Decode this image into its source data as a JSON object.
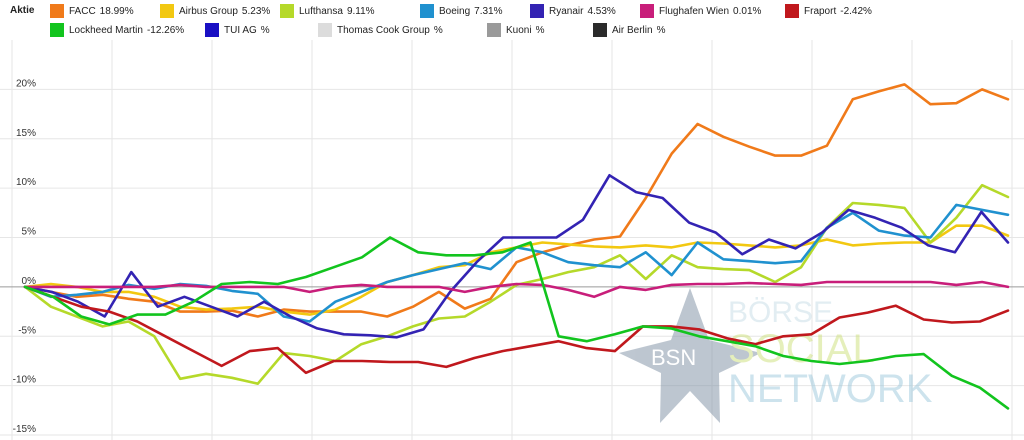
{
  "legend": {
    "title": "Aktie"
  },
  "watermark": {
    "star_text": "BSN",
    "line1": "BÖRSE",
    "line2": "SOCIAL",
    "line3": "NETWORK"
  },
  "chart_data": {
    "type": "line",
    "ylim": [
      -15.5,
      25
    ],
    "yticks": [
      20,
      15,
      10,
      5,
      0,
      -5,
      -10,
      -15
    ],
    "ytick_labels": [
      "20%",
      "15%",
      "10%",
      "5%",
      "0%",
      "-5%",
      "-10%",
      "-15%"
    ],
    "grid": true,
    "legend_position": "top",
    "series": [
      {
        "name": "FACC",
        "value_label": "18.99%",
        "color": "#f07a1a",
        "values": [
          0,
          -0.5,
          -1,
          -0.8,
          -1.2,
          -1.5,
          -2.5,
          -2.5,
          -2.4,
          -3,
          -2.3,
          -2.5,
          -2.5,
          -2.5,
          -3,
          -2,
          -0.5,
          -2.2,
          -1.2,
          2.5,
          3.5,
          4.2,
          4.8,
          5.1,
          9,
          13.5,
          16.5,
          15.2,
          14.2,
          13.3,
          13.3,
          14.3,
          19,
          19.8,
          20.5,
          18.5,
          18.6,
          20,
          19
        ]
      },
      {
        "name": "Airbus Group",
        "value_label": "5.23%",
        "color": "#f2c811",
        "values": [
          0,
          0.3,
          0,
          -0.5,
          -0.5,
          -1,
          -2,
          -2.3,
          -2.2,
          -2,
          -2.5,
          -2.8,
          -2.3,
          -1,
          0.5,
          1.2,
          2,
          2.2,
          3.5,
          4,
          4.5,
          4.3,
          4.1,
          4,
          4.2,
          4,
          4.5,
          4.4,
          4.2,
          4,
          4.2,
          4.8,
          4.2,
          4.4,
          4.5,
          4.5,
          6.2,
          6.2,
          5.2
        ]
      },
      {
        "name": "Lufthansa",
        "value_label": "9.11%",
        "color": "#b5d92a",
        "values": [
          0,
          -2,
          -3,
          -4,
          -3.5,
          -5,
          -9.3,
          -8.8,
          -9.2,
          -9.8,
          -6.7,
          -7,
          -7.5,
          -5.8,
          -5,
          -4,
          -3.2,
          -3,
          -1.5,
          0.2,
          0.8,
          1.5,
          2,
          3.2,
          0.8,
          3.2,
          2,
          1.8,
          1.7,
          0.5,
          2,
          6,
          8.5,
          8.3,
          8,
          4.5,
          7,
          10.3,
          9.1
        ]
      },
      {
        "name": "Boeing",
        "value_label": "7.31%",
        "color": "#2091cf",
        "values": [
          0,
          -1,
          -0.8,
          -0.5,
          0.2,
          -0.2,
          0.3,
          0.1,
          -0.4,
          -0.7,
          -3,
          -3.5,
          -1.5,
          -0.5,
          0.5,
          1.2,
          1.8,
          2.4,
          1.8,
          4,
          3.5,
          2.5,
          2.2,
          2,
          3.5,
          1.2,
          4.5,
          2.8,
          2.6,
          2.4,
          2.6,
          6,
          7.5,
          5.7,
          5.2,
          5,
          8.3,
          7.8,
          7.3
        ]
      },
      {
        "name": "Ryanair",
        "value_label": "4.53%",
        "color": "#3323b3",
        "values": [
          0,
          -0.5,
          -1.5,
          -3,
          1.5,
          -2,
          -1,
          -2,
          -3,
          -1.5,
          -3,
          -4.2,
          -4.8,
          -4.9,
          -5.1,
          -4.3,
          -0.5,
          2.5,
          5,
          5,
          5,
          6.8,
          11.3,
          9.6,
          9,
          6.5,
          5.5,
          3.3,
          4.8,
          3.9,
          5.5,
          7.8,
          7,
          6,
          4.2,
          3.5,
          7.6,
          4.5
        ]
      },
      {
        "name": "Flughafen Wien",
        "value_label": "0.01%",
        "color": "#c81e7a",
        "values": [
          0,
          0,
          0,
          0,
          0,
          0,
          0.2,
          0,
          0,
          0,
          0,
          -0.5,
          0,
          0.2,
          0,
          0,
          0,
          -0.5,
          0,
          0.3,
          0.2,
          -0.3,
          -1,
          0,
          -0.3,
          0.2,
          0.3,
          0.3,
          0.4,
          0.3,
          0.2,
          0.5,
          0.5,
          0.5,
          0.5,
          0.5,
          0.2,
          0.5,
          0
        ]
      },
      {
        "name": "Fraport",
        "value_label": "-2.42%",
        "color": "#c0181d",
        "values": [
          0,
          -1,
          -2,
          -2.5,
          -3.5,
          -5,
          -6.5,
          -8,
          -6.5,
          -6.2,
          -8.7,
          -7.5,
          -7.5,
          -7.6,
          -7.6,
          -8.1,
          -7.2,
          -6.5,
          -6,
          -5.5,
          -6.2,
          -6.5,
          -4,
          -4,
          -4.3,
          -5.2,
          -5.8,
          -5,
          -4.8,
          -3.1,
          -2.6,
          -1.9,
          -3.3,
          -3.6,
          -3.5,
          -2.4
        ]
      },
      {
        "name": "Lockheed Martin",
        "value_label": "-12.26%",
        "color": "#12c41e",
        "values": [
          0,
          -1,
          -3,
          -3.8,
          -2.8,
          -2.8,
          -1.5,
          0.3,
          0.5,
          0.3,
          1,
          2,
          3,
          5,
          3.5,
          3.2,
          3.2,
          3.5,
          4.5,
          -5,
          -5.5,
          -4.8,
          -4,
          -4.2,
          -5,
          -5.5,
          -6,
          -7,
          -7.5,
          -7.8,
          -7.5,
          -7,
          -6.8,
          -9,
          -10.2,
          -12.3
        ]
      },
      {
        "name": "TUI AG",
        "value_label": "%",
        "color": "#1a10c4",
        "values": []
      },
      {
        "name": "Thomas Cook Group",
        "value_label": "%",
        "color": "#dcdcdc",
        "values": []
      },
      {
        "name": "Kuoni",
        "value_label": "%",
        "color": "#9a9a9a",
        "values": []
      },
      {
        "name": "Air Berlin",
        "value_label": "%",
        "color": "#2b2b2b",
        "values": []
      }
    ]
  }
}
